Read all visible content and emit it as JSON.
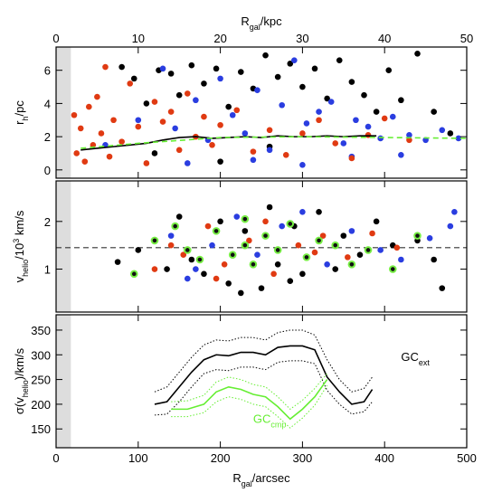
{
  "chart_data": [
    {
      "type": "scatter",
      "ylabel": [
        {
          "text": "r"
        },
        {
          "text": "h",
          "style": "sub"
        },
        {
          "text": "/pc"
        }
      ],
      "x2label": [
        {
          "text": "R"
        },
        {
          "text": "gal",
          "style": "sub"
        },
        {
          "text": "/kpc"
        }
      ],
      "xlim": [
        0,
        500
      ],
      "x2lim": [
        0,
        50
      ],
      "x2ticks": [
        0,
        10,
        20,
        30,
        40,
        50
      ],
      "xticks": [
        0,
        100,
        200,
        300,
        400,
        500
      ],
      "ylim": [
        -0.5,
        7.4
      ],
      "yticks": [
        0,
        2,
        4,
        6
      ],
      "shade_x": [
        0,
        18
      ],
      "series": [
        {
          "color": "#000000",
          "x": [
            80,
            95,
            110,
            125,
            140,
            150,
            165,
            180,
            195,
            210,
            225,
            240,
            255,
            270,
            285,
            300,
            315,
            330,
            345,
            360,
            375,
            390,
            405,
            420,
            440,
            460,
            480,
            120,
            200,
            260
          ],
          "values": [
            6.2,
            5.5,
            4.0,
            6.0,
            5.8,
            4.5,
            6.3,
            5.2,
            6.1,
            3.8,
            5.9,
            4.9,
            6.9,
            5.6,
            6.4,
            5.0,
            6.1,
            4.3,
            6.6,
            5.3,
            4.5,
            3.5,
            6.0,
            4.2,
            7.0,
            3.5,
            2.2,
            1.0,
            0.5,
            1.4
          ]
        },
        {
          "color": "#2a3de0",
          "x": [
            60,
            100,
            130,
            145,
            170,
            185,
            200,
            215,
            230,
            245,
            260,
            275,
            290,
            305,
            320,
            335,
            350,
            365,
            380,
            395,
            410,
            430,
            450,
            470,
            490,
            160,
            240,
            300,
            360,
            420
          ],
          "values": [
            1.5,
            3.0,
            6.1,
            2.5,
            4.2,
            1.8,
            5.5,
            3.3,
            2.2,
            4.8,
            1.2,
            3.9,
            6.6,
            2.8,
            3.5,
            4.1,
            1.6,
            3.0,
            2.6,
            1.9,
            3.2,
            2.1,
            1.8,
            2.4,
            1.9,
            0.4,
            0.6,
            0.3,
            0.8,
            0.9
          ]
        },
        {
          "color": "#e03a12",
          "x": [
            22,
            25,
            30,
            35,
            40,
            45,
            50,
            55,
            60,
            65,
            70,
            80,
            90,
            100,
            110,
            120,
            130,
            140,
            150,
            160,
            170,
            180,
            190,
            200,
            220,
            240,
            260,
            280,
            300,
            320,
            340,
            360,
            380,
            400,
            430
          ],
          "values": [
            3.3,
            1.0,
            2.5,
            0.5,
            3.8,
            1.5,
            4.4,
            2.2,
            6.2,
            0.8,
            3.0,
            1.7,
            5.2,
            2.6,
            0.4,
            4.1,
            2.9,
            3.5,
            1.2,
            4.6,
            2.0,
            3.2,
            1.5,
            2.7,
            3.6,
            1.1,
            2.4,
            0.9,
            2.2,
            3.0,
            1.6,
            0.7,
            2.1,
            3.1,
            1.8
          ]
        }
      ],
      "lines": [
        {
          "color": "#000000",
          "style": "solid",
          "x": [
            30,
            50,
            70,
            90,
            110,
            130,
            150,
            170,
            190,
            210,
            230,
            250,
            270,
            290,
            310,
            330,
            350,
            370,
            390
          ],
          "values": [
            1.2,
            1.3,
            1.4,
            1.5,
            1.6,
            1.8,
            1.95,
            2.0,
            1.9,
            1.95,
            2.0,
            1.95,
            2.05,
            2.0,
            2.0,
            2.05,
            2.0,
            2.05,
            2.05
          ]
        },
        {
          "color": "#66ee33",
          "style": "dashed",
          "x": [
            30,
            100,
            200,
            300,
            400,
            500
          ],
          "values": [
            1.3,
            1.6,
            1.95,
            2.0,
            1.95,
            1.9
          ]
        }
      ]
    },
    {
      "type": "scatter",
      "ylabel": [
        {
          "text": "v"
        },
        {
          "text": "helio",
          "style": "sub"
        },
        {
          "text": "/10"
        },
        {
          "text": "3",
          "style": "sup"
        },
        {
          "text": " km/s"
        }
      ],
      "xlim": [
        0,
        500
      ],
      "xticks": [
        0,
        100,
        200,
        300,
        400,
        500
      ],
      "ylim": [
        0.1,
        2.85
      ],
      "yticks": [
        1,
        2
      ],
      "shade_x": [
        0,
        18
      ],
      "hline": 1.45,
      "series": [
        {
          "color": "#000000",
          "x": [
            75,
            100,
            150,
            165,
            180,
            200,
            210,
            230,
            250,
            260,
            270,
            290,
            300,
            320,
            340,
            350,
            370,
            390,
            410,
            440,
            460,
            470,
            135,
            225,
            285
          ],
          "values": [
            1.15,
            1.4,
            2.1,
            1.2,
            0.9,
            2.0,
            0.7,
            1.8,
            0.6,
            2.3,
            1.1,
            1.9,
            0.9,
            2.2,
            1.0,
            1.7,
            1.3,
            2.0,
            1.5,
            1.6,
            1.2,
            0.6,
            1.0,
            0.5,
            0.75
          ]
        },
        {
          "color": "#2a3de0",
          "x": [
            140,
            170,
            190,
            220,
            245,
            275,
            300,
            330,
            360,
            395,
            420,
            455,
            480,
            485,
            160
          ],
          "values": [
            1.7,
            1.0,
            1.5,
            2.1,
            1.3,
            1.9,
            2.2,
            1.1,
            1.8,
            1.4,
            1.2,
            1.65,
            1.9,
            2.2,
            0.8
          ]
        },
        {
          "color": "#e03a12",
          "x": [
            120,
            155,
            185,
            205,
            235,
            265,
            295,
            325,
            355,
            385,
            415,
            195,
            255,
            315,
            140
          ],
          "values": [
            1.0,
            1.3,
            1.9,
            1.1,
            1.6,
            0.9,
            1.5,
            1.7,
            1.25,
            1.75,
            1.45,
            0.8,
            2.0,
            1.35,
            1.5
          ]
        },
        {
          "color": "#111111",
          "ring": "#77ee44",
          "x": [
            95,
            120,
            145,
            160,
            175,
            195,
            215,
            230,
            240,
            255,
            270,
            285,
            305,
            320,
            340,
            360,
            380,
            410,
            440,
            230
          ],
          "values": [
            0.9,
            1.6,
            1.9,
            1.4,
            1.2,
            1.8,
            1.3,
            1.5,
            1.1,
            1.7,
            1.4,
            1.95,
            1.25,
            1.6,
            1.5,
            1.1,
            1.4,
            1.0,
            1.7,
            2.05
          ]
        }
      ]
    },
    {
      "type": "line",
      "ylabel": [
        {
          "text": "σ(v"
        },
        {
          "text": "helio",
          "style": "sub"
        },
        {
          "text": ")/km/s"
        }
      ],
      "xlabel": [
        {
          "text": "R"
        },
        {
          "text": "gal",
          "style": "sub"
        },
        {
          "text": "/arcsec"
        }
      ],
      "xlim": [
        0,
        500
      ],
      "xticks": [
        0,
        100,
        200,
        300,
        400,
        500
      ],
      "ylim": [
        112,
        381
      ],
      "yticks": [
        150,
        200,
        250,
        300,
        350
      ],
      "shade_x": [
        0,
        18
      ],
      "lines": [
        {
          "color": "#000000",
          "style": "solid",
          "x": [
            120,
            135,
            150,
            165,
            180,
            195,
            210,
            225,
            240,
            255,
            270,
            285,
            300,
            315,
            330,
            345,
            360,
            375,
            385
          ],
          "values": [
            200,
            205,
            235,
            265,
            290,
            300,
            298,
            305,
            305,
            300,
            315,
            318,
            318,
            310,
            255,
            225,
            200,
            205,
            230
          ]
        },
        {
          "color": "#000000",
          "style": "dotted",
          "x": [
            120,
            135,
            150,
            165,
            180,
            195,
            210,
            225,
            240,
            255,
            270,
            285,
            300,
            315,
            330,
            345,
            360,
            375,
            385
          ],
          "values": [
            225,
            235,
            265,
            295,
            320,
            330,
            328,
            335,
            335,
            330,
            345,
            350,
            350,
            340,
            290,
            250,
            225,
            232,
            255
          ]
        },
        {
          "color": "#000000",
          "style": "dotted",
          "x": [
            120,
            135,
            150,
            165,
            180,
            195,
            210,
            225,
            240,
            255,
            270,
            285,
            300,
            315,
            330,
            345,
            360,
            375,
            385
          ],
          "values": [
            178,
            180,
            205,
            235,
            262,
            270,
            268,
            275,
            275,
            270,
            285,
            288,
            288,
            282,
            228,
            200,
            180,
            185,
            205
          ]
        },
        {
          "color": "#66ee33",
          "style": "solid",
          "x": [
            140,
            160,
            180,
            195,
            210,
            225,
            240,
            255,
            270,
            285,
            300,
            315,
            330
          ],
          "values": [
            190,
            190,
            200,
            225,
            235,
            230,
            220,
            215,
            195,
            170,
            190,
            215,
            250
          ]
        },
        {
          "color": "#66ee33",
          "style": "dotted",
          "x": [
            140,
            160,
            180,
            195,
            210,
            225,
            240,
            255,
            270,
            285,
            300,
            315,
            330
          ],
          "values": [
            205,
            207,
            218,
            245,
            255,
            250,
            240,
            235,
            215,
            190,
            208,
            232,
            262
          ]
        },
        {
          "color": "#66ee33",
          "style": "dotted",
          "x": [
            140,
            160,
            180,
            195,
            210,
            225,
            240,
            255,
            270,
            285,
            300,
            315,
            330
          ],
          "values": [
            175,
            175,
            183,
            205,
            215,
            210,
            200,
            195,
            175,
            152,
            172,
            198,
            238
          ]
        }
      ],
      "annotations": [
        {
          "color": "#000000",
          "parts": [
            {
              "text": "GC"
            },
            {
              "text": "ext",
              "style": "sub"
            }
          ]
        },
        {
          "color": "#66ee33",
          "parts": [
            {
              "text": "GC"
            },
            {
              "text": "cmp",
              "style": "sub"
            }
          ]
        }
      ]
    }
  ]
}
